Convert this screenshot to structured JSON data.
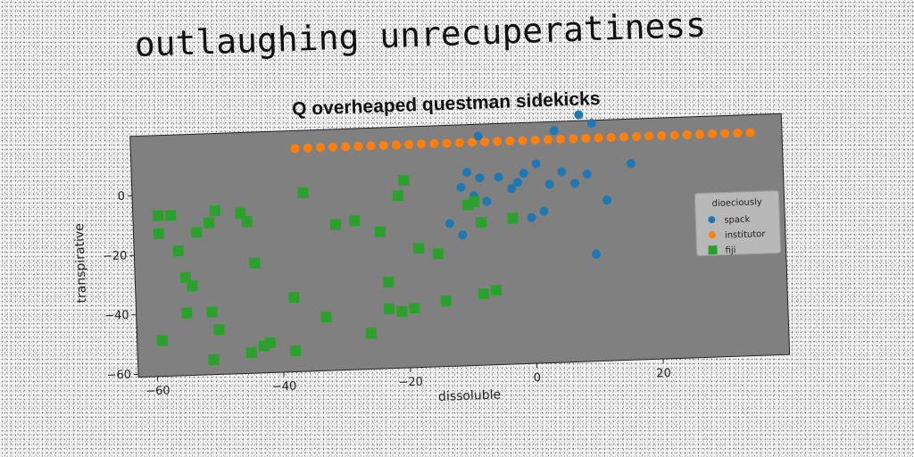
{
  "header": {
    "title": "outlaughing unrecuperatiness"
  },
  "chart_data": {
    "type": "scatter",
    "title": "Q overheaped questman sidekicks",
    "xlabel": "dissoluble",
    "ylabel": "transpirative",
    "xlim": [
      -63,
      40
    ],
    "ylim": [
      -61,
      20
    ],
    "xticks": [
      -60,
      -40,
      -20,
      0,
      20
    ],
    "yticks": [
      -60,
      -40,
      -20,
      0
    ],
    "grid": false,
    "legend": {
      "title": "dioeciously",
      "placement": "right"
    },
    "colors": {
      "axes_bg": "#808080",
      "spack": "#1f77b4",
      "institutor": "#ff7f0e",
      "fiji": "#2ca02c"
    },
    "series": [
      {
        "name": "spack",
        "marker": "circle",
        "points": [
          [
            -8,
            16
          ],
          [
            4,
            17
          ],
          [
            8,
            22
          ],
          [
            10,
            19
          ],
          [
            -10,
            4
          ],
          [
            -8,
            2
          ],
          [
            -5,
            2
          ],
          [
            -2,
            0
          ],
          [
            -1,
            3
          ],
          [
            1,
            6
          ],
          [
            3,
            -1
          ],
          [
            5,
            3
          ],
          [
            7,
            -1
          ],
          [
            9,
            2
          ],
          [
            12,
            -7
          ],
          [
            16,
            5
          ],
          [
            -11,
            -1
          ],
          [
            -9,
            -4
          ],
          [
            -7,
            -6
          ],
          [
            -3,
            -2
          ],
          [
            -13,
            -13
          ],
          [
            -11,
            -17
          ],
          [
            0,
            -12
          ],
          [
            2,
            -10
          ],
          [
            10,
            -25
          ]
        ]
      },
      {
        "name": "institutor",
        "marker": "circle",
        "points": [
          [
            -37,
            14
          ],
          [
            -35,
            14
          ],
          [
            -33,
            14
          ],
          [
            -31,
            14
          ],
          [
            -29,
            14
          ],
          [
            -27,
            14
          ],
          [
            -25,
            14
          ],
          [
            -23,
            14
          ],
          [
            -21,
            14
          ],
          [
            -19,
            14
          ],
          [
            -17,
            14
          ],
          [
            -15,
            14
          ],
          [
            -13,
            14
          ],
          [
            -11,
            14
          ],
          [
            -9,
            14
          ],
          [
            -7,
            14
          ],
          [
            -5,
            14
          ],
          [
            -3,
            14
          ],
          [
            -1,
            14
          ],
          [
            1,
            14
          ],
          [
            3,
            14
          ],
          [
            5,
            14
          ],
          [
            7,
            14
          ],
          [
            9,
            14
          ],
          [
            11,
            14
          ],
          [
            13,
            14
          ],
          [
            15,
            14
          ],
          [
            17,
            14
          ],
          [
            19,
            14
          ],
          [
            21,
            14
          ],
          [
            23,
            14
          ],
          [
            25,
            14
          ],
          [
            27,
            14
          ],
          [
            29,
            14
          ],
          [
            31,
            14
          ],
          [
            33,
            14
          ],
          [
            35,
            14
          ]
        ]
      },
      {
        "name": "fiji",
        "marker": "square",
        "points": [
          [
            -59,
            -7
          ],
          [
            -57,
            -7
          ],
          [
            -59,
            -13
          ],
          [
            -56,
            -19
          ],
          [
            -53,
            -13
          ],
          [
            -51,
            -10
          ],
          [
            -50,
            -6
          ],
          [
            -46,
            -7
          ],
          [
            -45,
            -10
          ],
          [
            -44,
            -24
          ],
          [
            -55,
            -28
          ],
          [
            -54,
            -31
          ],
          [
            -55,
            -40
          ],
          [
            -51,
            -40
          ],
          [
            -50,
            -46
          ],
          [
            -45,
            -54
          ],
          [
            -43,
            -52
          ],
          [
            -42,
            -51
          ],
          [
            -38,
            -54
          ],
          [
            -59,
            -49
          ],
          [
            -51,
            -56
          ],
          [
            -38,
            -36
          ],
          [
            -36,
            -1
          ],
          [
            -33,
            -43
          ],
          [
            -31,
            -12
          ],
          [
            -28,
            -11
          ],
          [
            -26,
            -49
          ],
          [
            -24,
            -15
          ],
          [
            -23,
            -32
          ],
          [
            -23,
            -41
          ],
          [
            -21,
            -42
          ],
          [
            -19,
            -41
          ],
          [
            -20,
            2
          ],
          [
            -21,
            -3
          ],
          [
            -18,
            -21
          ],
          [
            -15,
            -23
          ],
          [
            -14,
            -39
          ],
          [
            -10,
            -7
          ],
          [
            -9,
            -6
          ],
          [
            -8,
            -37
          ],
          [
            -6,
            -36
          ],
          [
            -8,
            -13
          ],
          [
            -3,
            -12
          ]
        ]
      }
    ]
  }
}
